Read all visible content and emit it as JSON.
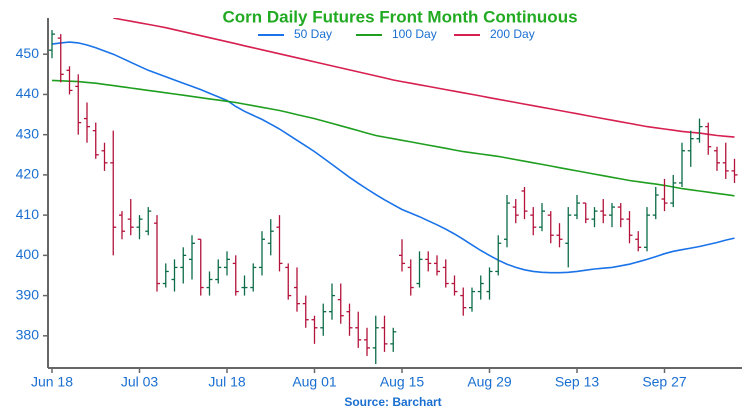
{
  "chart_data": {
    "type": "ohlc",
    "title": "Corn Daily Futures Front Month Continuous",
    "source": "Source: Barchart",
    "categories": [
      "Jun 18",
      null,
      null,
      null,
      null,
      null,
      null,
      null,
      null,
      null,
      "Jul 03",
      null,
      null,
      null,
      null,
      null,
      null,
      null,
      null,
      null,
      "Jul 18",
      null,
      null,
      null,
      null,
      null,
      null,
      null,
      null,
      null,
      "Aug 01",
      null,
      null,
      null,
      null,
      null,
      null,
      null,
      null,
      null,
      "Aug 15",
      null,
      null,
      null,
      null,
      null,
      null,
      null,
      null,
      null,
      "Aug 29",
      null,
      null,
      null,
      null,
      null,
      null,
      null,
      null,
      null,
      "Sep 13",
      null,
      null,
      null,
      null,
      null,
      null,
      null,
      null,
      null,
      "Sep 27",
      null,
      null,
      null,
      null,
      null,
      null,
      null,
      null
    ],
    "open": [
      451,
      454,
      446,
      442,
      434,
      431,
      426,
      423,
      410,
      409,
      407,
      406,
      408,
      393,
      394,
      397,
      399,
      404,
      392,
      394,
      397,
      398,
      392,
      392,
      397,
      403,
      407,
      397,
      392,
      388,
      384,
      382,
      386,
      389,
      386,
      382,
      379,
      377,
      382,
      378,
      400,
      397,
      393,
      399,
      398,
      397,
      393,
      390,
      387,
      391,
      391,
      396,
      404,
      412,
      416,
      410,
      407,
      410,
      405,
      403,
      410,
      413,
      409,
      411,
      410,
      412,
      409,
      404,
      402,
      410,
      414,
      413,
      418,
      426,
      429,
      432,
      426,
      423,
      421
    ],
    "high": [
      456,
      455,
      447,
      445,
      438,
      433,
      428,
      431,
      411,
      414,
      410,
      412,
      410,
      398,
      399,
      402,
      405,
      404,
      396,
      399,
      401,
      400,
      395,
      398,
      406,
      409,
      410,
      398,
      397,
      390,
      385,
      388,
      393,
      393,
      388,
      386,
      382,
      385,
      385,
      382,
      404,
      399,
      401,
      401,
      400,
      399,
      395,
      392,
      392,
      395,
      397,
      405,
      415,
      414,
      417,
      412,
      413,
      411,
      408,
      412,
      415,
      413,
      412,
      414,
      413,
      413,
      411,
      406,
      412,
      417,
      419,
      420,
      428,
      431,
      434,
      433,
      427,
      428,
      424
    ],
    "low": [
      449,
      443,
      440,
      430,
      428,
      424,
      421,
      400,
      404,
      405,
      404,
      405,
      391,
      392,
      391,
      393,
      394,
      390,
      390,
      393,
      395,
      390,
      390,
      391,
      395,
      400,
      396,
      389,
      386,
      382,
      378,
      380,
      384,
      383,
      380,
      377,
      375,
      373,
      376,
      376,
      396,
      390,
      392,
      396,
      395,
      392,
      390,
      385,
      386,
      389,
      389,
      395,
      402,
      408,
      409,
      405,
      406,
      403,
      402,
      397,
      409,
      408,
      407,
      408,
      407,
      407,
      403,
      401,
      401,
      409,
      411,
      412,
      417,
      422,
      428,
      425,
      421,
      419,
      418
    ],
    "close": [
      455,
      445,
      441,
      433,
      432,
      425,
      423,
      407,
      406,
      407,
      409,
      411,
      393,
      396,
      397,
      400,
      403,
      392,
      394,
      397,
      399,
      391,
      392,
      397,
      404,
      406,
      398,
      390,
      388,
      384,
      382,
      386,
      390,
      385,
      382,
      379,
      377,
      382,
      378,
      381,
      398,
      392,
      399,
      398,
      396,
      393,
      391,
      387,
      391,
      393,
      396,
      403,
      413,
      410,
      411,
      407,
      411,
      405,
      404,
      410,
      413,
      409,
      411,
      410,
      412,
      409,
      405,
      402,
      410,
      415,
      413,
      418,
      426,
      429,
      432,
      427,
      423,
      421,
      420
    ],
    "up_color": "#0b6b47",
    "down_color": "#b3123a",
    "series": [
      {
        "name": "50 Day",
        "color": "#1a73e8",
        "values": [
          452.5,
          452.8,
          453,
          452.8,
          452.3,
          451.6,
          450.8,
          450,
          449,
          448,
          447,
          446,
          445.2,
          444.4,
          443.6,
          442.8,
          442,
          441.2,
          440.3,
          439.4,
          438.5,
          437,
          435.8,
          434.8,
          433.8,
          432.6,
          431.4,
          430,
          428.6,
          427.2,
          425.8,
          424.2,
          422.6,
          421,
          419.4,
          417.9,
          416.5,
          415.1,
          413.8,
          412.6,
          411.4,
          410.5,
          409.6,
          408.6,
          407.6,
          406.5,
          405.3,
          404,
          402.6,
          401.2,
          400,
          398.8,
          397.8,
          397,
          396.4,
          396,
          395.8,
          395.7,
          395.7,
          395.8,
          396,
          396.3,
          396.6,
          396.8,
          397,
          397.4,
          397.8,
          398.4,
          399,
          399.7,
          400.4,
          401,
          401.4,
          401.8,
          402.2,
          402.7,
          403.2,
          403.8,
          404.3
        ]
      },
      {
        "name": "100 Day",
        "color": "#1f9e1f",
        "values": [
          443.5,
          443.4,
          443.3,
          443.2,
          443,
          442.8,
          442.5,
          442.2,
          441.9,
          441.6,
          441.3,
          441,
          440.7,
          440.4,
          440.1,
          439.8,
          439.5,
          439.2,
          438.9,
          438.6,
          438.3,
          438,
          437.6,
          437.2,
          436.8,
          436.4,
          436,
          435.5,
          435,
          434.5,
          434,
          433.4,
          432.8,
          432.2,
          431.6,
          431,
          430.4,
          429.8,
          429.4,
          429,
          428.6,
          428.2,
          427.8,
          427.4,
          427,
          426.6,
          426.2,
          425.8,
          425.5,
          425.2,
          424.9,
          424.6,
          424.2,
          423.8,
          423.4,
          423,
          422.6,
          422.2,
          421.8,
          421.4,
          421,
          420.6,
          420.2,
          419.8,
          419.4,
          419,
          418.6,
          418.3,
          418,
          417.7,
          417.4,
          417,
          416.6,
          416.3,
          416,
          415.7,
          415.4,
          415.1,
          414.8
        ]
      },
      {
        "name": "200 Day",
        "color": "#d6204f",
        "values": [
          null,
          null,
          null,
          null,
          null,
          null,
          null,
          459,
          458.6,
          458.2,
          457.8,
          457.4,
          457,
          456.6,
          456.1,
          455.6,
          455.1,
          454.6,
          454.1,
          453.6,
          453.1,
          452.6,
          452.1,
          451.6,
          451.1,
          450.6,
          450.1,
          449.6,
          449.1,
          448.6,
          448.1,
          447.6,
          447.1,
          446.6,
          446.1,
          445.6,
          445.1,
          444.6,
          444.1,
          443.6,
          443.2,
          442.8,
          442.4,
          442,
          441.6,
          441.2,
          440.8,
          440.4,
          440,
          439.6,
          439.2,
          438.8,
          438.4,
          438,
          437.6,
          437.2,
          436.8,
          436.4,
          436,
          435.6,
          435.2,
          434.8,
          434.4,
          434,
          433.6,
          433.2,
          432.8,
          432.4,
          432,
          431.7,
          431.4,
          431.1,
          430.8,
          430.6,
          430.4,
          430.1,
          429.8,
          429.6,
          429.4
        ]
      }
    ],
    "ylim": [
      372,
      459
    ],
    "yticks": [
      380,
      390,
      400,
      410,
      420,
      430,
      440,
      450
    ],
    "title_color": "#22aa22",
    "text_color": "#1a6fd1"
  }
}
